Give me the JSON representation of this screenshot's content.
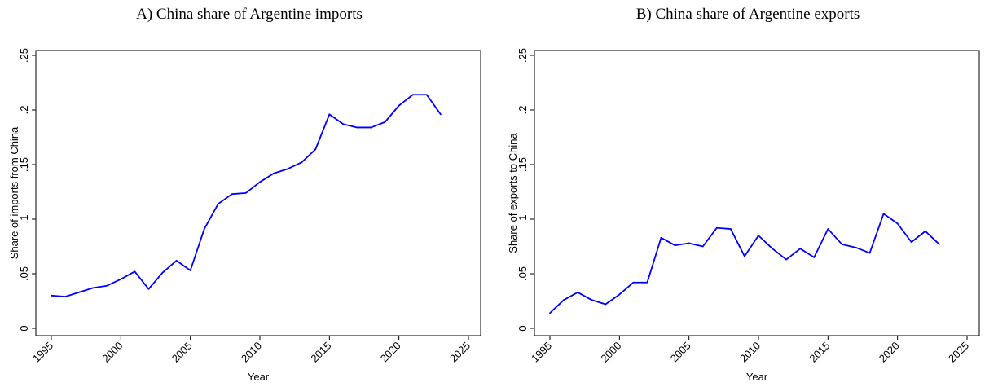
{
  "chart_data": [
    {
      "type": "line",
      "title": "A) China share of Argentine imports",
      "xlabel": "Year",
      "ylabel": "Share of imports from China",
      "xlim": [
        1995,
        2025
      ],
      "ylim": [
        0,
        0.25
      ],
      "x_ticks": [
        1995,
        2000,
        2005,
        2010,
        2015,
        2020,
        2025
      ],
      "x_tick_labels": [
        "1995",
        "2000",
        "2005",
        "2010",
        "2015",
        "2020",
        "2025"
      ],
      "y_ticks": [
        0,
        0.05,
        0.1,
        0.15,
        0.2,
        0.25
      ],
      "y_tick_labels": [
        "0",
        ".05",
        ".1",
        ".15",
        ".2",
        ".25"
      ],
      "grid": false,
      "line_color": "#0000ff",
      "x": [
        1995,
        1996,
        1997,
        1998,
        1999,
        2000,
        2001,
        2002,
        2003,
        2004,
        2005,
        2006,
        2007,
        2008,
        2009,
        2010,
        2011,
        2012,
        2013,
        2014,
        2015,
        2016,
        2017,
        2018,
        2019,
        2020,
        2021,
        2022,
        2023
      ],
      "values": [
        0.03,
        0.029,
        0.033,
        0.037,
        0.039,
        0.045,
        0.052,
        0.036,
        0.051,
        0.062,
        0.053,
        0.091,
        0.114,
        0.123,
        0.124,
        0.134,
        0.142,
        0.146,
        0.152,
        0.164,
        0.196,
        0.187,
        0.184,
        0.184,
        0.189,
        0.204,
        0.214,
        0.214,
        0.196
      ]
    },
    {
      "type": "line",
      "title": "B) China share of Argentine exports",
      "xlabel": "Year",
      "ylabel": "Share of exports to China",
      "xlim": [
        1995,
        2025
      ],
      "ylim": [
        0,
        0.25
      ],
      "x_ticks": [
        1995,
        2000,
        2005,
        2010,
        2015,
        2020,
        2025
      ],
      "x_tick_labels": [
        "1995",
        "2000",
        "2005",
        "2010",
        "2015",
        "2020",
        "2025"
      ],
      "y_ticks": [
        0,
        0.05,
        0.1,
        0.15,
        0.2,
        0.25
      ],
      "y_tick_labels": [
        "0",
        ".05",
        ".1",
        ".15",
        ".2",
        ".25"
      ],
      "grid": false,
      "line_color": "#0000ff",
      "x": [
        1995,
        1996,
        1997,
        1998,
        1999,
        2000,
        2001,
        2002,
        2003,
        2004,
        2005,
        2006,
        2007,
        2008,
        2009,
        2010,
        2011,
        2012,
        2013,
        2014,
        2015,
        2016,
        2017,
        2018,
        2019,
        2020,
        2021,
        2022,
        2023
      ],
      "values": [
        0.014,
        0.026,
        0.033,
        0.026,
        0.022,
        0.031,
        0.042,
        0.042,
        0.083,
        0.076,
        0.078,
        0.075,
        0.092,
        0.091,
        0.066,
        0.085,
        0.073,
        0.063,
        0.073,
        0.065,
        0.091,
        0.077,
        0.074,
        0.069,
        0.105,
        0.096,
        0.079,
        0.089,
        0.077
      ]
    }
  ]
}
